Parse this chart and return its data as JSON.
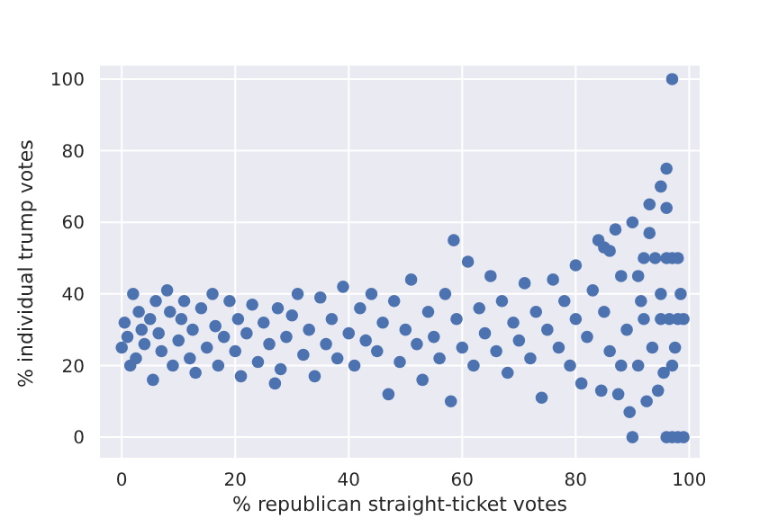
{
  "chart_data": {
    "type": "scatter",
    "xlabel": "% republican straight-ticket votes",
    "ylabel": "% individual trump votes",
    "xlim": [
      -4,
      102
    ],
    "ylim": [
      -6,
      104
    ],
    "xticks": [
      0,
      20,
      40,
      60,
      80,
      100
    ],
    "yticks": [
      0,
      20,
      40,
      60,
      80,
      100
    ],
    "grid": true,
    "marker": "circle",
    "series": [
      {
        "color": "#4c72b0",
        "x": [
          0,
          0.5,
          1,
          1.5,
          2,
          2.5,
          3,
          3.5,
          4,
          5,
          5.5,
          6,
          6.5,
          7,
          8,
          8.5,
          9,
          10,
          10.5,
          11,
          12,
          12.5,
          13,
          14,
          15,
          16,
          16.5,
          17,
          18,
          19,
          20,
          20.5,
          21,
          22,
          23,
          24,
          25,
          26,
          27,
          27.5,
          28,
          29,
          30,
          31,
          32,
          33,
          34,
          35,
          36,
          37,
          38,
          39,
          40,
          41,
          42,
          43,
          44,
          45,
          46,
          47,
          48,
          49,
          50,
          51,
          52,
          53,
          54,
          55,
          56,
          57,
          58,
          58.5,
          59,
          60,
          61,
          62,
          63,
          64,
          65,
          66,
          67,
          68,
          69,
          70,
          71,
          72,
          73,
          74,
          75,
          76,
          77,
          78,
          79,
          80,
          80,
          81,
          82,
          83,
          84,
          84.5,
          85,
          86,
          87,
          87.5,
          88,
          89,
          89.5,
          90,
          91,
          91.5,
          92,
          92.5,
          93,
          93.5,
          94,
          94.5,
          95,
          95,
          95.5,
          96,
          96,
          96.5,
          97,
          97,
          97,
          97.5,
          98,
          98,
          98.5,
          96,
          99,
          90,
          99,
          98,
          95,
          92,
          93,
          86,
          85,
          88,
          91,
          96,
          97
        ],
        "values": [
          25,
          32,
          28,
          20,
          40,
          22,
          35,
          30,
          26,
          33,
          16,
          38,
          29,
          24,
          41,
          35,
          20,
          27,
          33,
          38,
          22,
          30,
          18,
          36,
          25,
          40,
          31,
          20,
          28,
          38,
          24,
          33,
          17,
          29,
          37,
          21,
          32,
          26,
          15,
          36,
          19,
          28,
          34,
          40,
          23,
          30,
          17,
          39,
          26,
          33,
          22,
          42,
          29,
          20,
          36,
          27,
          40,
          24,
          32,
          12,
          38,
          21,
          30,
          44,
          26,
          16,
          35,
          28,
          22,
          40,
          10,
          55,
          33,
          25,
          49,
          20,
          36,
          29,
          45,
          24,
          38,
          18,
          32,
          27,
          43,
          22,
          35,
          11,
          30,
          44,
          25,
          38,
          20,
          33,
          48,
          15,
          28,
          41,
          55,
          13,
          35,
          24,
          58,
          12,
          45,
          30,
          7,
          60,
          20,
          38,
          50,
          10,
          65,
          25,
          50,
          13,
          70,
          40,
          18,
          50,
          75,
          33,
          50,
          100,
          0,
          25,
          50,
          0,
          40,
          0,
          0,
          0,
          33,
          33,
          33,
          33,
          57,
          52,
          53,
          20,
          45,
          64,
          20
        ]
      }
    ]
  }
}
